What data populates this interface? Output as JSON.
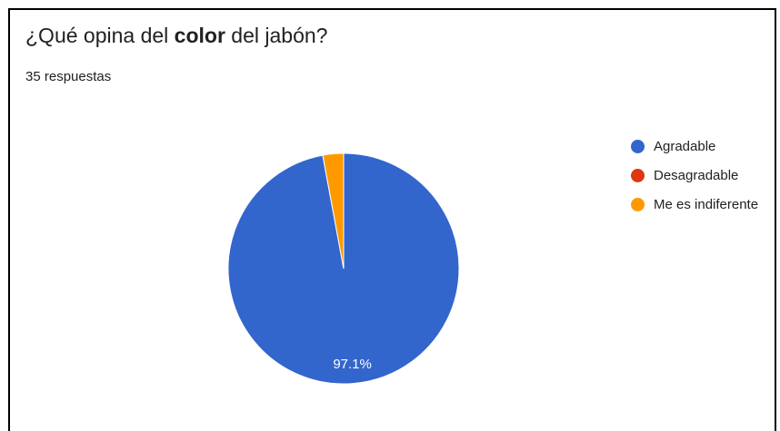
{
  "chart": {
    "title_parts": [
      "¿Qué opina del ",
      "color",
      " del jabón?"
    ],
    "responses": "35 respuestas"
  },
  "chart_data": {
    "type": "pie",
    "title": "¿Qué opina del color del jabón?",
    "categories": [
      "Agradable",
      "Desagradable",
      "Me es indiferente"
    ],
    "values": [
      97.1,
      0,
      2.9
    ],
    "data_labels": [
      "97.1%",
      "",
      ""
    ],
    "colors": [
      "#3366cc",
      "#dc3912",
      "#ff9900"
    ],
    "legend_position": "right"
  }
}
